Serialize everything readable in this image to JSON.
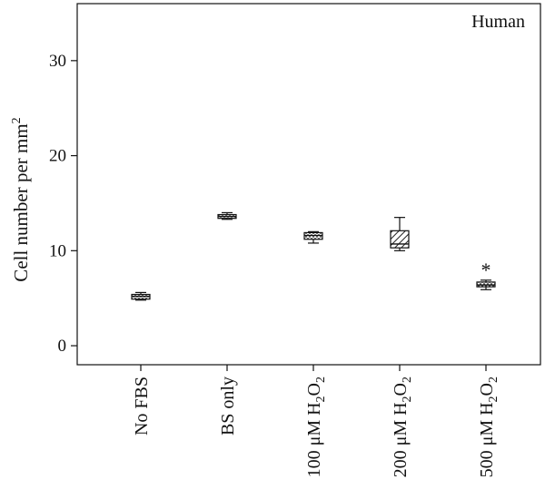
{
  "chart_data": {
    "type": "box",
    "panel_label": "Human",
    "ylabel": "Cell number per mm",
    "ylabel_superscript": "2",
    "ylim": [
      -2,
      36
    ],
    "yticks": [
      0,
      10,
      20,
      30
    ],
    "categories": [
      {
        "prefix": "No FBS",
        "sub": "",
        "suffix": ""
      },
      {
        "prefix": "BS only",
        "sub": "",
        "suffix": ""
      },
      {
        "prefix": "100 μM H",
        "sub": "2",
        "suffix": "O",
        "sub2": "2"
      },
      {
        "prefix": "200 μM H",
        "sub": "2",
        "suffix": "O",
        "sub2": "2"
      },
      {
        "prefix": "500 μM H",
        "sub": "2",
        "suffix": "O",
        "sub2": "2"
      }
    ],
    "boxes": [
      {
        "min": 4.8,
        "q1": 4.9,
        "median": 5.2,
        "q3": 5.4,
        "max": 5.6,
        "pattern": "dots"
      },
      {
        "min": 13.3,
        "q1": 13.4,
        "median": 13.6,
        "q3": 13.8,
        "max": 14.0,
        "pattern": "dots"
      },
      {
        "min": 10.8,
        "q1": 11.2,
        "median": 11.6,
        "q3": 11.9,
        "max": 12.0,
        "pattern": "dots"
      },
      {
        "min": 10.0,
        "q1": 10.3,
        "median": 10.7,
        "q3": 12.1,
        "max": 13.5,
        "pattern": "hatch"
      },
      {
        "min": 5.9,
        "q1": 6.2,
        "median": 6.4,
        "q3": 6.7,
        "max": 6.9,
        "pattern": "dots"
      }
    ],
    "annotations": [
      {
        "category_index": 4,
        "text": "*"
      }
    ],
    "grid": false
  }
}
